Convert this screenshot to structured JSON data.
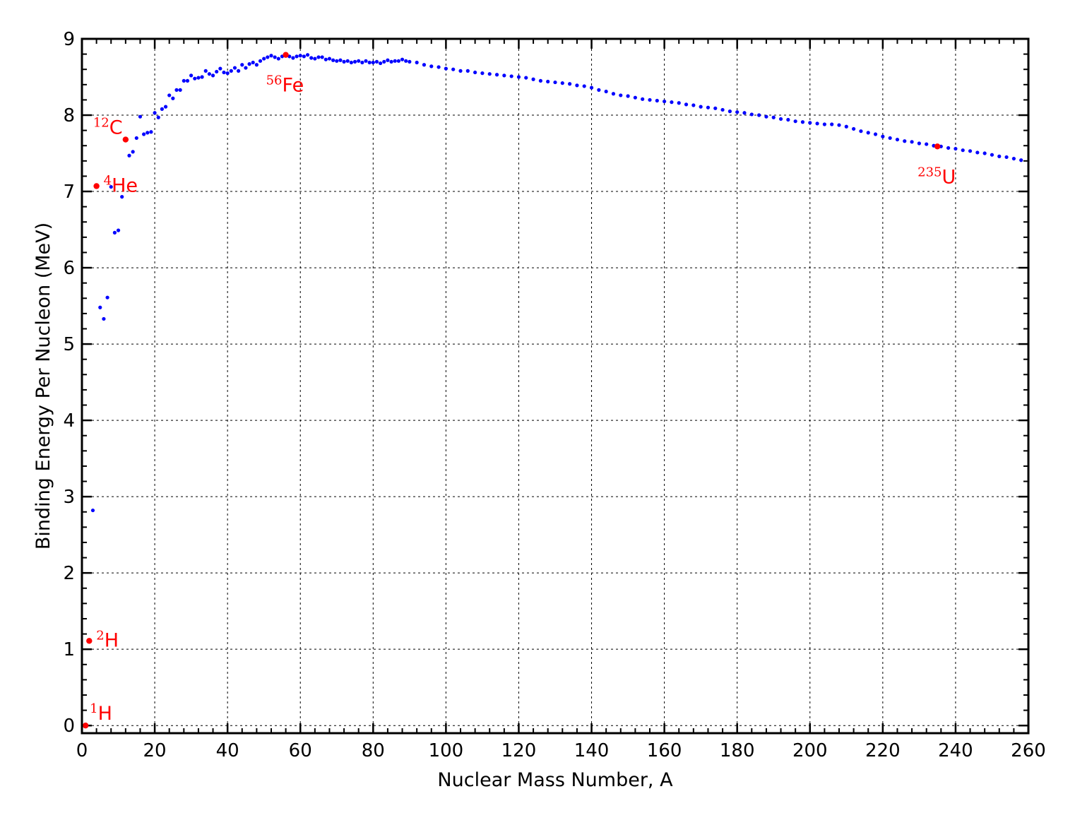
{
  "chart_data": {
    "type": "scatter",
    "xlabel": "Nuclear Mass Number, A",
    "ylabel": "Binding Energy Per Nucleon (MeV)",
    "xlim": [
      0,
      260
    ],
    "ylim": [
      -0.1,
      9
    ],
    "xticks": [
      "0",
      "20",
      "40",
      "60",
      "80",
      "100",
      "120",
      "140",
      "160",
      "180",
      "200",
      "220",
      "240",
      "260"
    ],
    "yticks": [
      "0",
      "1",
      "2",
      "3",
      "4",
      "5",
      "6",
      "7",
      "8",
      "9"
    ],
    "grid": true,
    "series_color": "#0000ff",
    "highlight_color": "#ff0000",
    "series": [
      {
        "values": [
          [
            3,
            2.82
          ],
          [
            6,
            5.33
          ],
          [
            5,
            5.48
          ],
          [
            7,
            5.61
          ],
          [
            8,
            7.06
          ],
          [
            9,
            6.46
          ],
          [
            10,
            6.49
          ],
          [
            11,
            6.93
          ],
          [
            13,
            7.47
          ],
          [
            14,
            7.52
          ],
          [
            15,
            7.7
          ],
          [
            16,
            7.98
          ],
          [
            17,
            7.75
          ],
          [
            18,
            7.77
          ],
          [
            19,
            7.78
          ],
          [
            20,
            8.03
          ],
          [
            21,
            7.97
          ],
          [
            22,
            8.08
          ],
          [
            23,
            8.11
          ],
          [
            24,
            8.26
          ],
          [
            25,
            8.22
          ],
          [
            26,
            8.33
          ],
          [
            27,
            8.33
          ],
          [
            28,
            8.45
          ],
          [
            29,
            8.45
          ],
          [
            30,
            8.52
          ],
          [
            31,
            8.48
          ],
          [
            32,
            8.49
          ],
          [
            33,
            8.5
          ],
          [
            34,
            8.58
          ],
          [
            35,
            8.54
          ],
          [
            36,
            8.52
          ],
          [
            37,
            8.57
          ],
          [
            38,
            8.61
          ],
          [
            39,
            8.56
          ],
          [
            40,
            8.55
          ],
          [
            41,
            8.58
          ],
          [
            42,
            8.62
          ],
          [
            43,
            8.58
          ],
          [
            44,
            8.66
          ],
          [
            45,
            8.62
          ],
          [
            46,
            8.67
          ],
          [
            47,
            8.69
          ],
          [
            48,
            8.66
          ],
          [
            49,
            8.71
          ],
          [
            50,
            8.74
          ],
          [
            51,
            8.76
          ],
          [
            52,
            8.78
          ],
          [
            53,
            8.76
          ],
          [
            54,
            8.74
          ],
          [
            55,
            8.77
          ],
          [
            57,
            8.77
          ],
          [
            58,
            8.75
          ],
          [
            59,
            8.77
          ],
          [
            60,
            8.78
          ],
          [
            61,
            8.77
          ],
          [
            62,
            8.79
          ],
          [
            63,
            8.75
          ],
          [
            64,
            8.74
          ],
          [
            65,
            8.76
          ],
          [
            66,
            8.76
          ],
          [
            67,
            8.73
          ],
          [
            68,
            8.74
          ],
          [
            69,
            8.72
          ],
          [
            70,
            8.71
          ],
          [
            71,
            8.72
          ],
          [
            72,
            8.7
          ],
          [
            73,
            8.71
          ],
          [
            74,
            8.69
          ],
          [
            75,
            8.7
          ],
          [
            76,
            8.71
          ],
          [
            77,
            8.69
          ],
          [
            78,
            8.71
          ],
          [
            79,
            8.69
          ],
          [
            80,
            8.69
          ],
          [
            81,
            8.7
          ],
          [
            82,
            8.68
          ],
          [
            83,
            8.7
          ],
          [
            84,
            8.72
          ],
          [
            85,
            8.7
          ],
          [
            86,
            8.71
          ],
          [
            87,
            8.71
          ],
          [
            88,
            8.73
          ],
          [
            89,
            8.71
          ],
          [
            90,
            8.7
          ],
          [
            92,
            8.69
          ],
          [
            94,
            8.66
          ],
          [
            96,
            8.64
          ],
          [
            98,
            8.63
          ],
          [
            100,
            8.61
          ],
          [
            102,
            8.6
          ],
          [
            104,
            8.58
          ],
          [
            106,
            8.58
          ],
          [
            108,
            8.56
          ],
          [
            110,
            8.55
          ],
          [
            112,
            8.54
          ],
          [
            114,
            8.53
          ],
          [
            116,
            8.52
          ],
          [
            118,
            8.51
          ],
          [
            120,
            8.5
          ],
          [
            122,
            8.49
          ],
          [
            124,
            8.47
          ],
          [
            126,
            8.45
          ],
          [
            128,
            8.44
          ],
          [
            130,
            8.43
          ],
          [
            132,
            8.42
          ],
          [
            134,
            8.41
          ],
          [
            136,
            8.39
          ],
          [
            138,
            8.38
          ],
          [
            140,
            8.36
          ],
          [
            142,
            8.33
          ],
          [
            144,
            8.31
          ],
          [
            146,
            8.28
          ],
          [
            148,
            8.26
          ],
          [
            150,
            8.25
          ],
          [
            152,
            8.23
          ],
          [
            154,
            8.21
          ],
          [
            156,
            8.2
          ],
          [
            158,
            8.19
          ],
          [
            160,
            8.18
          ],
          [
            162,
            8.17
          ],
          [
            164,
            8.16
          ],
          [
            166,
            8.14
          ],
          [
            168,
            8.13
          ],
          [
            170,
            8.11
          ],
          [
            172,
            8.1
          ],
          [
            174,
            8.09
          ],
          [
            176,
            8.07
          ],
          [
            178,
            8.05
          ],
          [
            180,
            8.04
          ],
          [
            182,
            8.03
          ],
          [
            184,
            8.01
          ],
          [
            186,
            8.0
          ],
          [
            188,
            7.98
          ],
          [
            190,
            7.97
          ],
          [
            192,
            7.95
          ],
          [
            194,
            7.94
          ],
          [
            196,
            7.92
          ],
          [
            198,
            7.91
          ],
          [
            200,
            7.9
          ],
          [
            202,
            7.89
          ],
          [
            204,
            7.88
          ],
          [
            206,
            7.88
          ],
          [
            208,
            7.87
          ],
          [
            210,
            7.85
          ],
          [
            212,
            7.82
          ],
          [
            214,
            7.79
          ],
          [
            216,
            7.77
          ],
          [
            218,
            7.75
          ],
          [
            220,
            7.72
          ],
          [
            222,
            7.7
          ],
          [
            224,
            7.68
          ],
          [
            226,
            7.66
          ],
          [
            228,
            7.65
          ],
          [
            230,
            7.63
          ],
          [
            232,
            7.62
          ],
          [
            234,
            7.6
          ],
          [
            236,
            7.59
          ],
          [
            238,
            7.57
          ],
          [
            240,
            7.56
          ],
          [
            242,
            7.54
          ],
          [
            244,
            7.53
          ],
          [
            246,
            7.51
          ],
          [
            248,
            7.5
          ],
          [
            250,
            7.48
          ],
          [
            252,
            7.46
          ],
          [
            254,
            7.45
          ],
          [
            256,
            7.43
          ],
          [
            258,
            7.41
          ]
        ]
      }
    ],
    "annotations": [
      {
        "x": 1,
        "y": 0.0,
        "sup": "1",
        "element": "H",
        "label_pos": "right-up"
      },
      {
        "x": 2,
        "y": 1.11,
        "sup": "2",
        "element": "H",
        "label_pos": "right"
      },
      {
        "x": 4,
        "y": 7.07,
        "sup": "4",
        "element": "He",
        "label_pos": "right"
      },
      {
        "x": 12,
        "y": 7.68,
        "sup": "12",
        "element": "C",
        "label_pos": "up-left"
      },
      {
        "x": 56,
        "y": 8.79,
        "sup": "56",
        "element": "Fe",
        "label_pos": "below"
      },
      {
        "x": 235,
        "y": 7.59,
        "sup": "235",
        "element": "U",
        "label_pos": "below"
      }
    ]
  }
}
